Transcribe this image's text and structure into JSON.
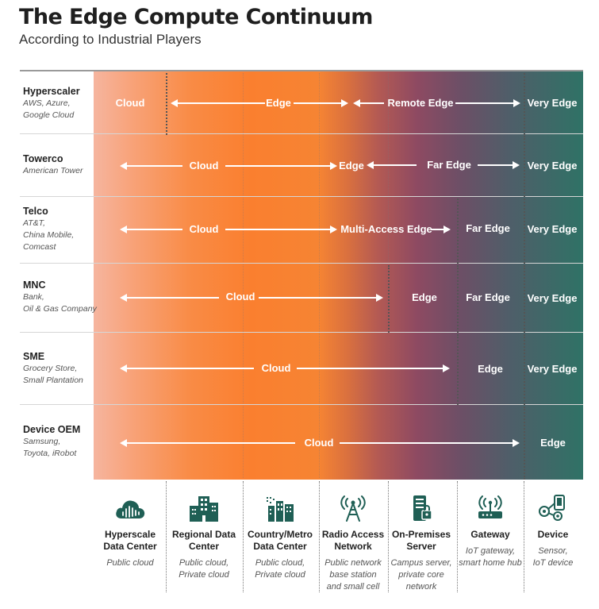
{
  "header": {
    "title": "The Edge Compute Continuum",
    "subtitle": "According to Industrial Players"
  },
  "colors": {
    "cloud": "#f6b59f",
    "edge": "#fa7f2f",
    "far_edge": "#8e4a62",
    "device": "#2f7266",
    "icon": "#1f5f55"
  },
  "rows": [
    {
      "name": "Hyperscaler",
      "sub": "AWS, Azure,\nGoogle Cloud",
      "zones": [
        "Cloud",
        "Edge",
        "Remote Edge",
        "Very Edge"
      ]
    },
    {
      "name": "Towerco",
      "sub": "American Tower",
      "zones": [
        "Cloud",
        "Edge",
        "Far Edge",
        "Very Edge"
      ]
    },
    {
      "name": "Telco",
      "sub": "AT&T,\nChina Mobile,\nComcast",
      "zones": [
        "Cloud",
        "Multi-Access Edge",
        "Far Edge",
        "Very Edge"
      ]
    },
    {
      "name": "MNC",
      "sub": "Bank,\nOil & Gas Company",
      "zones": [
        "Cloud",
        "Edge",
        "Far Edge",
        "Very Edge"
      ]
    },
    {
      "name": "SME",
      "sub": "Grocery Store,\nSmall Plantation",
      "zones": [
        "Cloud",
        "Edge",
        "Very Edge"
      ]
    },
    {
      "name": "Device OEM",
      "sub": "Samsung,\nToyota, iRobot",
      "zones": [
        "Cloud",
        "Edge"
      ]
    }
  ],
  "columns": [
    {
      "name": "Hyperscale\nData Center",
      "desc": "Public cloud",
      "icon": "cloud-datacenter-icon"
    },
    {
      "name": "Regional Data\nCenter",
      "desc": "Public cloud,\nPrivate cloud",
      "icon": "buildings-icon"
    },
    {
      "name": "Country/Metro\nData Center",
      "desc": "Public cloud,\nPrivate cloud",
      "icon": "city-icon"
    },
    {
      "name": "Radio Access\nNetwork",
      "desc": "Public network\nbase station\nand small cell",
      "icon": "radio-tower-icon"
    },
    {
      "name": "On-Premises\nServer",
      "desc": "Campus server,\nprivate core\nnetwork",
      "icon": "server-icon"
    },
    {
      "name": "Gateway",
      "desc": "IoT gateway,\nsmart home hub",
      "icon": "router-icon"
    },
    {
      "name": "Device",
      "desc": "Sensor,\nIoT device",
      "icon": "devices-icon"
    }
  ]
}
